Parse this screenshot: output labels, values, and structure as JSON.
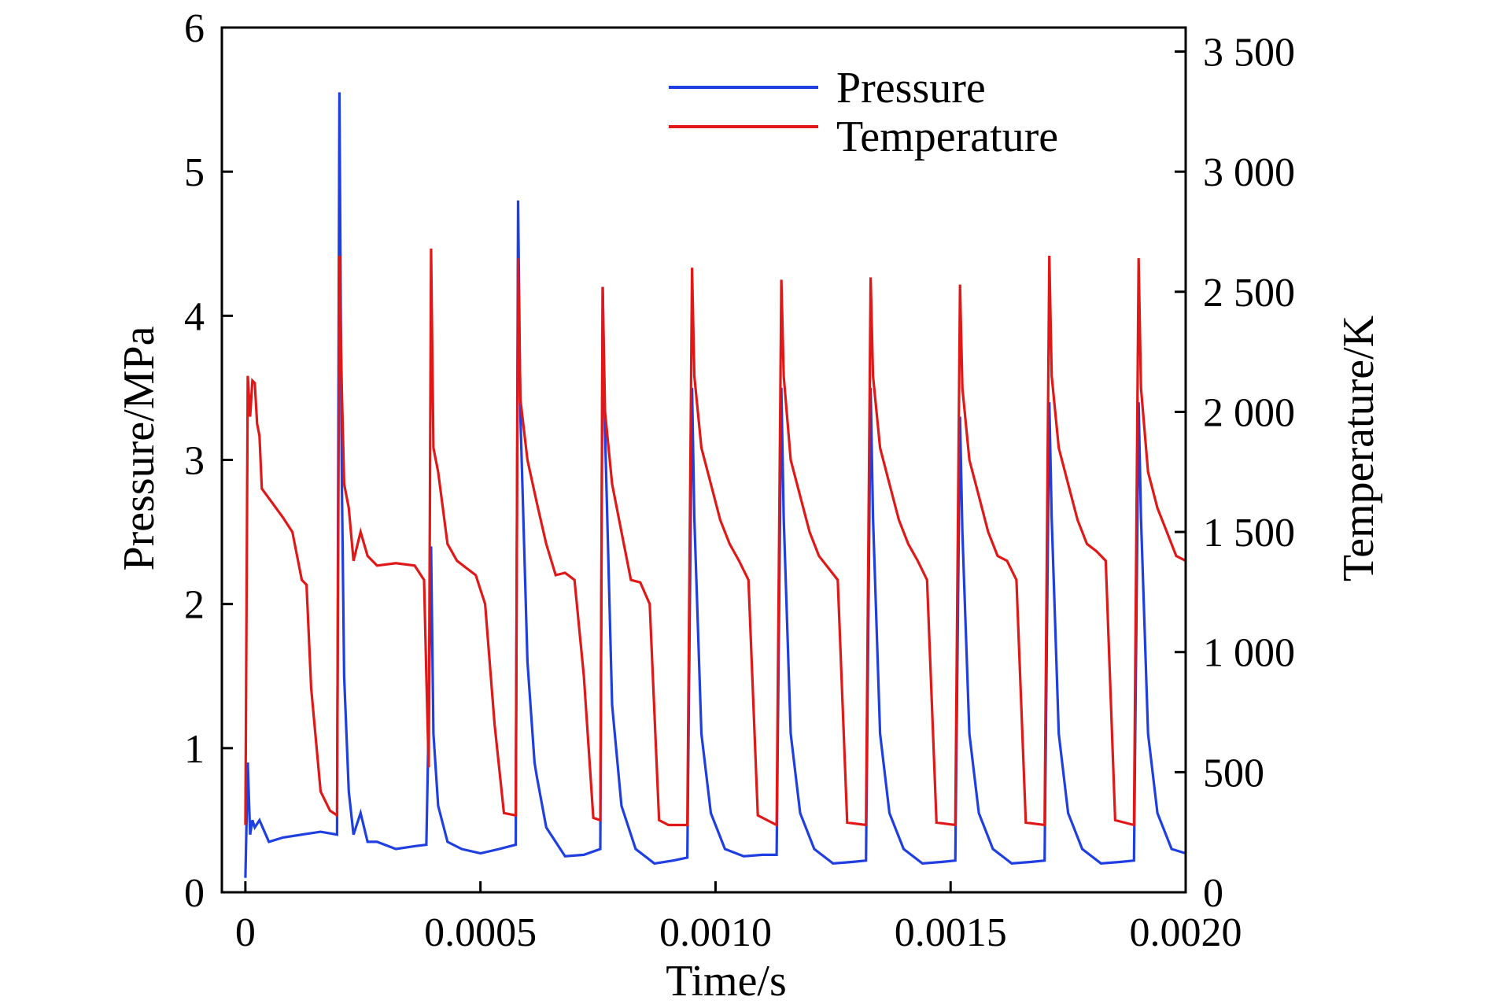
{
  "chart_data": {
    "type": "line",
    "xlabel": "Time/s",
    "ylabel": "Pressure/MPa",
    "y2label": "Temperature/K",
    "xlim": [
      -5e-05,
      0.002
    ],
    "ylim": [
      0,
      6
    ],
    "y2lim": [
      0,
      3600
    ],
    "x_ticks": [
      0,
      0.0005,
      0.001,
      0.0015,
      0.002
    ],
    "x_tick_labels": [
      "0",
      "0.0005",
      "0.0010",
      "0.0015",
      "0.0020"
    ],
    "y_ticks": [
      0,
      1,
      2,
      3,
      4,
      5,
      6
    ],
    "y_tick_labels": [
      "0",
      "1",
      "2",
      "3",
      "4",
      "5",
      "6"
    ],
    "y2_ticks": [
      0,
      500,
      1000,
      1500,
      2000,
      2500,
      3000,
      3500
    ],
    "y2_tick_labels": [
      "0",
      "500",
      "1 000",
      "1 500",
      "2 000",
      "2 500",
      "3 000",
      "3 500"
    ],
    "grid": false,
    "legend_position": "top-right",
    "series": [
      {
        "name": "Pressure",
        "axis": "left",
        "color": "#1f3fe0",
        "x": [
          0,
          5e-06,
          1e-05,
          1.5e-05,
          2e-05,
          3e-05,
          5e-05,
          8e-05,
          0.00012,
          0.00016,
          0.000195,
          0.0002,
          0.000205,
          0.00021,
          0.00022,
          0.00023,
          0.000245,
          0.00026,
          0.00028,
          0.00032,
          0.00036,
          0.000385,
          0.00039,
          0.000395,
          0.0004,
          0.00041,
          0.00043,
          0.00046,
          0.0005,
          0.00054,
          0.000575,
          0.00058,
          0.000585,
          0.0006,
          0.000615,
          0.00062,
          0.00064,
          0.00068,
          0.00072,
          0.000755,
          0.00076,
          0.000765,
          0.00078,
          0.0008,
          0.00083,
          0.00087,
          0.00091,
          0.00094,
          0.00095,
          0.000955,
          0.00097,
          0.00099,
          0.00102,
          0.00106,
          0.0011,
          0.00113,
          0.00114,
          0.001145,
          0.00116,
          0.00118,
          0.00121,
          0.00125,
          0.00129,
          0.00132,
          0.00133,
          0.001335,
          0.00135,
          0.00137,
          0.0014,
          0.00144,
          0.00148,
          0.00151,
          0.00152,
          0.001525,
          0.00154,
          0.00156,
          0.00159,
          0.00163,
          0.00167,
          0.0017,
          0.00171,
          0.001715,
          0.00173,
          0.00175,
          0.00178,
          0.00182,
          0.00186,
          0.00189,
          0.0019,
          0.001905,
          0.00192,
          0.00194,
          0.00197,
          0.002
        ],
        "y": [
          0.1,
          0.9,
          0.4,
          0.5,
          0.45,
          0.5,
          0.35,
          0.38,
          0.4,
          0.42,
          0.4,
          5.55,
          2.9,
          1.5,
          0.7,
          0.4,
          0.55,
          0.35,
          0.35,
          0.3,
          0.32,
          0.33,
          1.2,
          2.4,
          1.1,
          0.6,
          0.35,
          0.3,
          0.27,
          0.3,
          0.33,
          4.8,
          3.3,
          1.6,
          0.9,
          0.8,
          0.45,
          0.25,
          0.26,
          0.3,
          4.2,
          3.2,
          1.3,
          0.6,
          0.3,
          0.2,
          0.22,
          0.24,
          3.5,
          2.6,
          1.1,
          0.55,
          0.3,
          0.25,
          0.26,
          0.26,
          3.5,
          2.6,
          1.1,
          0.55,
          0.3,
          0.2,
          0.21,
          0.22,
          3.5,
          2.6,
          1.1,
          0.55,
          0.3,
          0.2,
          0.21,
          0.22,
          3.3,
          2.5,
          1.1,
          0.55,
          0.3,
          0.2,
          0.21,
          0.22,
          3.4,
          2.6,
          1.1,
          0.55,
          0.3,
          0.2,
          0.21,
          0.22,
          3.4,
          2.6,
          1.1,
          0.55,
          0.3,
          0.27
        ]
      },
      {
        "name": "Temperature",
        "axis": "right",
        "color": "#e01818",
        "x": [
          0,
          5e-06,
          1e-05,
          1.5e-05,
          2e-05,
          2.5e-05,
          3e-05,
          3.5e-05,
          5e-05,
          8e-05,
          0.0001,
          0.00012,
          0.00013,
          0.00014,
          0.00016,
          0.00018,
          0.000195,
          0.0002,
          0.000205,
          0.00021,
          0.00022,
          0.00023,
          0.000245,
          0.00026,
          0.00028,
          0.00032,
          0.00036,
          0.00038,
          0.000385,
          0.00039,
          0.000395,
          0.0004,
          0.00041,
          0.00043,
          0.00045,
          0.00047,
          0.00049,
          0.00051,
          0.00053,
          0.00055,
          0.000575,
          0.00058,
          0.000585,
          0.0006,
          0.00062,
          0.00064,
          0.00066,
          0.00068,
          0.0007,
          0.00072,
          0.00074,
          0.000755,
          0.00076,
          0.000765,
          0.00078,
          0.0008,
          0.00082,
          0.00084,
          0.00086,
          0.00088,
          0.0009,
          0.00094,
          0.00095,
          0.000955,
          0.00097,
          0.00099,
          0.00101,
          0.00103,
          0.00105,
          0.00107,
          0.00109,
          0.00113,
          0.00114,
          0.001145,
          0.00116,
          0.00118,
          0.0012,
          0.00122,
          0.00124,
          0.00126,
          0.00128,
          0.00132,
          0.00133,
          0.001335,
          0.00135,
          0.00137,
          0.00139,
          0.00141,
          0.00143,
          0.00145,
          0.00147,
          0.00151,
          0.00152,
          0.001525,
          0.00154,
          0.00156,
          0.00158,
          0.0016,
          0.00162,
          0.00164,
          0.00166,
          0.0017,
          0.00171,
          0.001715,
          0.00173,
          0.00175,
          0.00177,
          0.00179,
          0.00181,
          0.00183,
          0.00185,
          0.00189,
          0.0019,
          0.001905,
          0.00192,
          0.00194,
          0.00196,
          0.00198,
          0.002
        ],
        "y": [
          280,
          2150,
          1980,
          2130,
          2120,
          1950,
          1900,
          1680,
          1640,
          1560,
          1500,
          1300,
          1280,
          850,
          420,
          340,
          320,
          2650,
          2100,
          1700,
          1600,
          1380,
          1500,
          1400,
          1360,
          1370,
          1360,
          1300,
          900,
          520,
          2680,
          1850,
          1750,
          1450,
          1380,
          1350,
          1320,
          1200,
          700,
          330,
          320,
          2640,
          2050,
          1800,
          1620,
          1450,
          1320,
          1330,
          1300,
          900,
          310,
          300,
          2520,
          2000,
          1700,
          1500,
          1300,
          1290,
          1200,
          300,
          280,
          280,
          2600,
          2150,
          1850,
          1700,
          1550,
          1450,
          1380,
          1300,
          320,
          280,
          2550,
          2150,
          1800,
          1650,
          1500,
          1400,
          1350,
          1300,
          290,
          280,
          2560,
          2150,
          1850,
          1700,
          1550,
          1450,
          1380,
          1300,
          290,
          280,
          2530,
          2100,
          1800,
          1650,
          1500,
          1400,
          1380,
          1300,
          290,
          280,
          2650,
          2150,
          1850,
          1700,
          1550,
          1450,
          1420,
          1380,
          300,
          280,
          2640,
          2100,
          1750,
          1600,
          1500,
          1400,
          1380
        ]
      }
    ]
  }
}
